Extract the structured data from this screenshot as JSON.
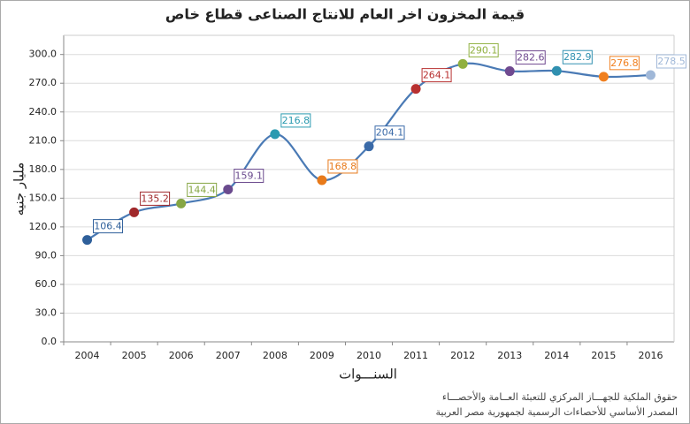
{
  "chart_data": {
    "type": "line",
    "title": "قيمة المخزون اخر العام للانتاج الصناعى قطاع خاص",
    "y_label": "مليار جنيه",
    "x_label": "السنـــوات",
    "categories": [
      "2004",
      "2005",
      "2006",
      "2007",
      "2008",
      "2009",
      "2010",
      "2011",
      "2012",
      "2013",
      "2014",
      "2015",
      "2016"
    ],
    "series": [
      {
        "color": "#4a7ab5",
        "values": [
          106.4,
          135.2,
          144.4,
          159.1,
          216.8,
          168.8,
          204.1,
          264.1,
          290.1,
          282.6,
          282.9,
          276.8,
          278.5
        ],
        "point_colors": [
          "#2e5f9a",
          "#a0282b",
          "#86a644",
          "#6a4a8e",
          "#2a9ab0",
          "#e87a1a",
          "#3a6aa8",
          "#b83030",
          "#90b040",
          "#704a90",
          "#3090b0",
          "#f08020",
          "#a0b8d8"
        ]
      }
    ],
    "ylim": [
      0,
      320
    ],
    "yticks": [
      {
        "value": 0,
        "label": "0.0"
      },
      {
        "value": 30,
        "label": "30.0"
      },
      {
        "value": 60,
        "label": "60.0"
      },
      {
        "value": 90,
        "label": "90.0"
      },
      {
        "value": 120,
        "label": "120.0"
      },
      {
        "value": 150,
        "label": "150.0"
      },
      {
        "value": 180,
        "label": "180.0"
      },
      {
        "value": 210,
        "label": "210.0"
      },
      {
        "value": 240,
        "label": "240.0"
      },
      {
        "value": 270,
        "label": "270.0"
      },
      {
        "value": 300,
        "label": "300.0"
      }
    ],
    "grid": true,
    "footer": [
      "حقوق الملكية للجهـــاز المركزي للتعبئة العــامة والأحصـــاء",
      "المصدر الأساسي للأحصاءات الرسمية لجمهورية مصر العربية"
    ]
  }
}
